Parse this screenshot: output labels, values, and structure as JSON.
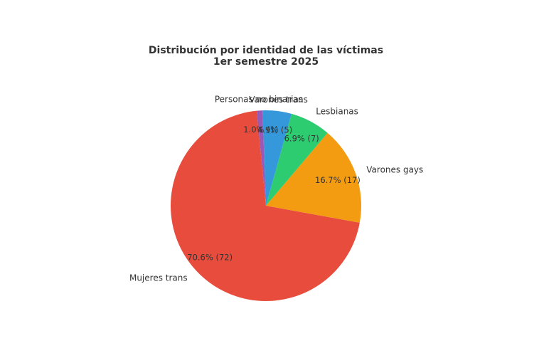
{
  "chart_data": {
    "type": "pie",
    "title": "Distribución por identidad de las víctimas",
    "subtitle": "1er semestre 2025",
    "slices": [
      {
        "label": "Mujeres trans",
        "value": 72,
        "percent_label": "70.6% (72)",
        "color": "#e74c3c"
      },
      {
        "label": "Varones gays",
        "value": 17,
        "percent_label": "16.7% (17)",
        "color": "#f39c12"
      },
      {
        "label": "Lesbianas",
        "value": 7,
        "percent_label": "6.9% (7)",
        "color": "#2ecc71"
      },
      {
        "label": "Varones trans",
        "value": 5,
        "percent_label": "4.9% (5)",
        "color": "#3498db"
      },
      {
        "label": "Personas no binarias",
        "value": 1,
        "percent_label": "1.0% (1)",
        "color": "#9b59b6"
      }
    ]
  }
}
